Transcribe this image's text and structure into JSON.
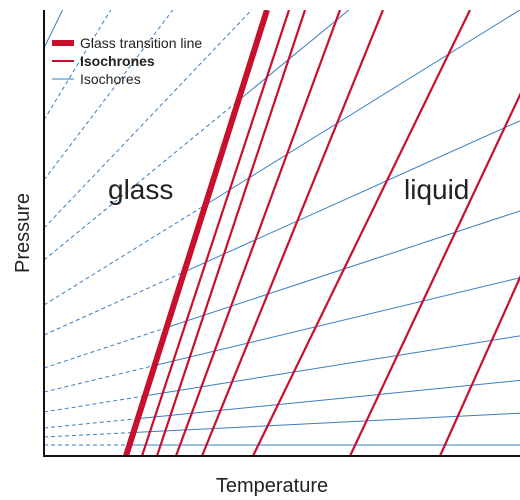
{
  "axes": {
    "x_label": "Temperature",
    "y_label": "Pressure"
  },
  "regions": {
    "glass": "glass",
    "liquid": "liquid"
  },
  "legend": {
    "items": [
      {
        "label": "Glass transition line",
        "style": "thick",
        "bold": false
      },
      {
        "label": "Isochrones",
        "style": "medium",
        "bold": true
      },
      {
        "label": "Isochores",
        "style": "thin",
        "bold": false
      }
    ]
  },
  "colors": {
    "glass_transition": "#c8102e",
    "isochrone": "#c8102e",
    "isochore": "#3a7fc1",
    "frame": "#111111",
    "text": "#222222"
  }
}
